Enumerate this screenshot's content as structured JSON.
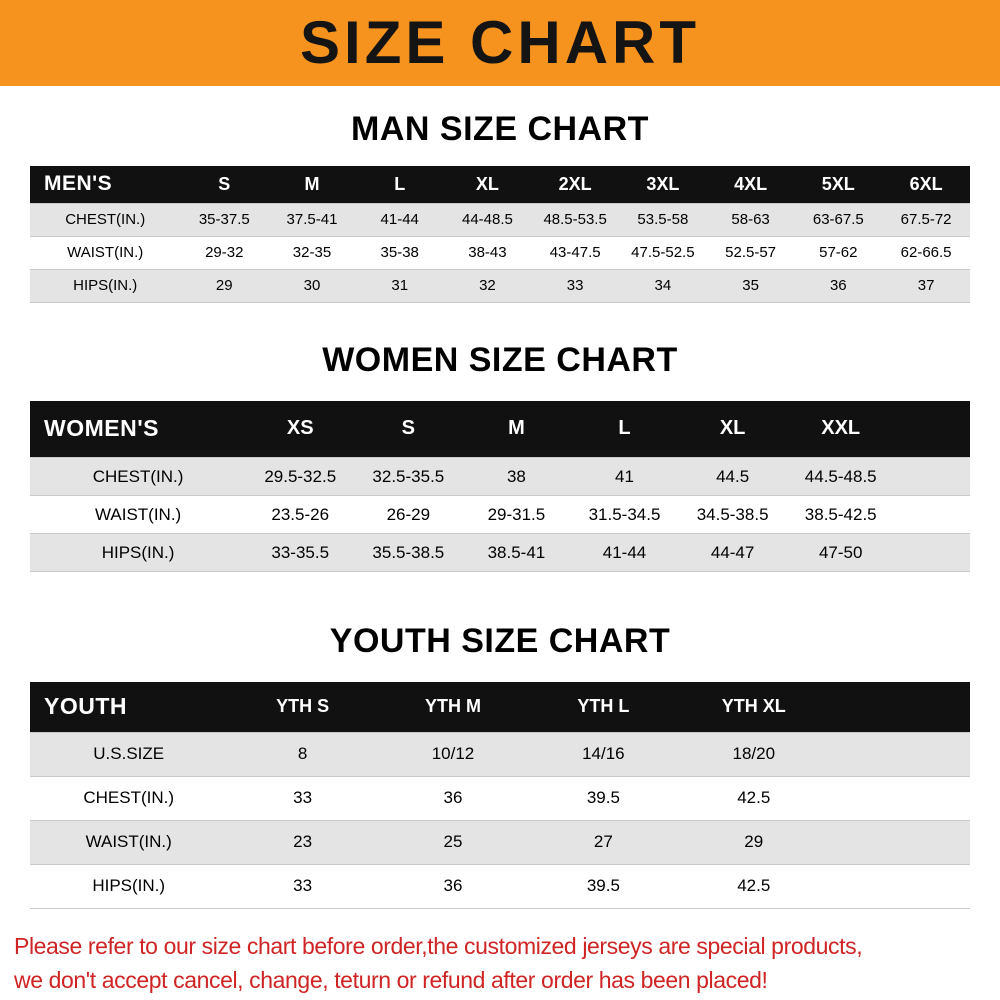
{
  "banner": {
    "title": "SIZE CHART"
  },
  "theme": {
    "banner_orange": "#f6921e",
    "header_black": "#111111",
    "stripe_gray": "#e4e4e4",
    "warning_red": "#cf2424"
  },
  "sections": [
    {
      "heading": "MAN SIZE CHART",
      "table": {
        "header": [
          "MEN'S",
          "S",
          "M",
          "L",
          "XL",
          "2XL",
          "3XL",
          "4XL",
          "5XL",
          "6XL"
        ],
        "rows": [
          [
            "CHEST(IN.)",
            "35-37.5",
            "37.5-41",
            "41-44",
            "44-48.5",
            "48.5-53.5",
            "53.5-58",
            "58-63",
            "63-67.5",
            "67.5-72"
          ],
          [
            "WAIST(IN.)",
            "29-32",
            "32-35",
            "35-38",
            "38-43",
            "43-47.5",
            "47.5-52.5",
            "52.5-57",
            "57-62",
            "62-66.5"
          ],
          [
            "HIPS(IN.)",
            "29",
            "30",
            "31",
            "32",
            "33",
            "34",
            "35",
            "36",
            "37"
          ]
        ]
      }
    },
    {
      "heading": "WOMEN SIZE CHART",
      "table": {
        "header": [
          "WOMEN'S",
          "XS",
          "S",
          "M",
          "L",
          "XL",
          "XXL"
        ],
        "rows": [
          [
            "CHEST(IN.)",
            "29.5-32.5",
            "32.5-35.5",
            "38",
            "41",
            "44.5",
            "44.5-48.5"
          ],
          [
            "WAIST(IN.)",
            "23.5-26",
            "26-29",
            "29-31.5",
            "31.5-34.5",
            "34.5-38.5",
            "38.5-42.5"
          ],
          [
            "HIPS(IN.)",
            "33-35.5",
            "35.5-38.5",
            "38.5-41",
            "41-44",
            "44-47",
            "47-50"
          ]
        ]
      }
    },
    {
      "heading": "YOUTH SIZE CHART",
      "table": {
        "header": [
          "YOUTH",
          "YTH S",
          "YTH M",
          "YTH L",
          "YTH XL"
        ],
        "rows": [
          [
            "U.S.SIZE",
            "8",
            "10/12",
            "14/16",
            "18/20"
          ],
          [
            "CHEST(IN.)",
            "33",
            "36",
            "39.5",
            "42.5"
          ],
          [
            "WAIST(IN.)",
            "23",
            "25",
            "27",
            "29"
          ],
          [
            "HIPS(IN.)",
            "33",
            "36",
            "39.5",
            "42.5"
          ]
        ]
      }
    }
  ],
  "footer": {
    "lines": [
      "Please refer to our size chart before order,the customized jerseys are special products,",
      "we don't accept cancel, change, teturn or refund after order has been placed!"
    ]
  }
}
